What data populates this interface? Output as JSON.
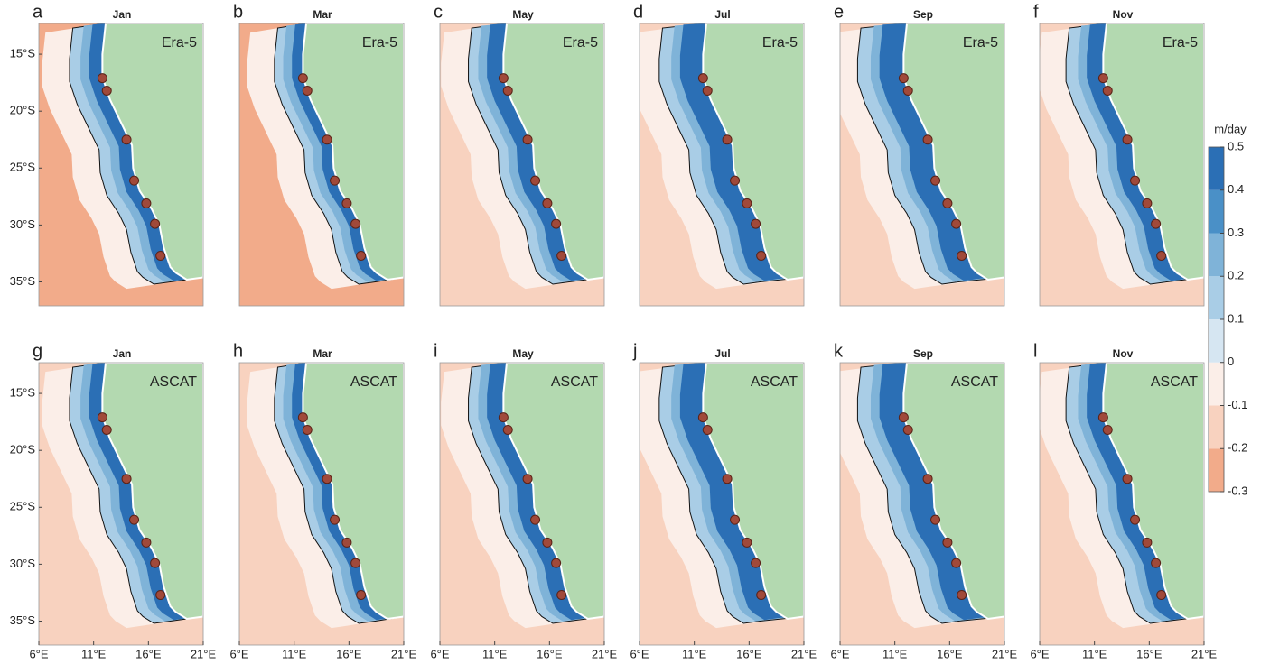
{
  "chart_data": {
    "type": "map",
    "panels": [
      {
        "letter": "a",
        "month": "Jan",
        "source": "Era-5"
      },
      {
        "letter": "b",
        "month": "Mar",
        "source": "Era-5"
      },
      {
        "letter": "c",
        "month": "May",
        "source": "Era-5"
      },
      {
        "letter": "d",
        "month": "Jul",
        "source": "Era-5"
      },
      {
        "letter": "e",
        "month": "Sep",
        "source": "Era-5"
      },
      {
        "letter": "f",
        "month": "Nov",
        "source": "Era-5"
      },
      {
        "letter": "g",
        "month": "Jan",
        "source": "ASCAT"
      },
      {
        "letter": "h",
        "month": "Mar",
        "source": "ASCAT"
      },
      {
        "letter": "i",
        "month": "May",
        "source": "ASCAT"
      },
      {
        "letter": "j",
        "month": "Jul",
        "source": "ASCAT"
      },
      {
        "letter": "k",
        "month": "Sep",
        "source": "ASCAT"
      },
      {
        "letter": "l",
        "month": "Nov",
        "source": "ASCAT"
      }
    ],
    "xlim": [
      6,
      21
    ],
    "xticks": [
      {
        "value": 6,
        "label": "6°E"
      },
      {
        "value": 11,
        "label": "11°E"
      },
      {
        "value": 16,
        "label": "16°E"
      },
      {
        "value": 21,
        "label": "21°E"
      }
    ],
    "ylim": [
      -37.1,
      -12.3
    ],
    "yticks": [
      {
        "value": -15,
        "label": "15°S"
      },
      {
        "value": -20,
        "label": "20°S"
      },
      {
        "value": -25,
        "label": "25°S"
      },
      {
        "value": -30,
        "label": "30°S"
      },
      {
        "value": -35,
        "label": "35°S"
      }
    ],
    "stations": {
      "lon": [
        11.8,
        12.2,
        14.0,
        14.7,
        15.8,
        16.6,
        17.1
      ],
      "lat": [
        -17.1,
        -18.2,
        -22.5,
        -26.1,
        -28.1,
        -29.9,
        -32.7
      ],
      "color": "#a0493a"
    },
    "land_color": "#b3d9b0",
    "colorbar": {
      "label": "m/day",
      "lim": [
        -0.3,
        0.5
      ],
      "ticks": [
        0.5,
        0.4,
        0.3,
        0.2,
        0.1,
        0,
        -0.1,
        -0.2,
        -0.3
      ],
      "colors": [
        "#f2ab8a",
        "#f8d2bf",
        "#fbeee8",
        "#d6e6f2",
        "#a9cde6",
        "#7fb3d8",
        "#4a90c7",
        "#2b6fb5"
      ]
    }
  }
}
